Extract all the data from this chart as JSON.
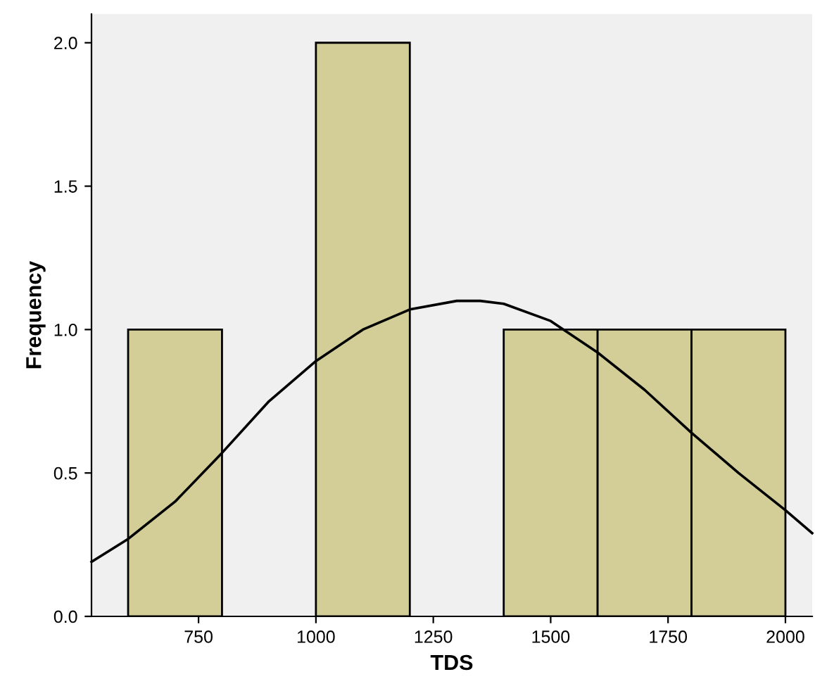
{
  "chart_data": {
    "type": "histogram",
    "xlabel": "TDS",
    "ylabel": "Frequency",
    "bins": [
      600,
      800,
      1000,
      1200,
      1400,
      1600,
      1800,
      2000
    ],
    "values": [
      1,
      0,
      2,
      0,
      1,
      1,
      1
    ],
    "color": "#d3ce97",
    "series": [
      {
        "type": "line",
        "color": "#000000",
        "x": [
          522,
          600,
          700,
          800,
          900,
          1000,
          1100,
          1200,
          1300,
          1350,
          1400,
          1500,
          1600,
          1700,
          1800,
          1900,
          2000,
          2057
        ],
        "values": [
          0.19,
          0.27,
          0.4,
          0.57,
          0.75,
          0.89,
          1.0,
          1.07,
          1.1,
          1.1,
          1.09,
          1.03,
          0.92,
          0.79,
          0.64,
          0.5,
          0.37,
          0.29
        ]
      }
    ],
    "xlim": [
      522,
      2057
    ],
    "ylim": [
      0,
      2.1
    ],
    "xticks": [
      750,
      1000,
      1250,
      1500,
      1750,
      2000
    ],
    "yticks": [
      {
        "value": 0,
        "label": "0.0"
      },
      {
        "value": 0.5,
        "label": "0.5"
      },
      {
        "value": 1,
        "label": "1.0"
      },
      {
        "value": 1.5,
        "label": "1.5"
      },
      {
        "value": 2,
        "label": "2.0"
      }
    ],
    "grid": false,
    "legend": false,
    "marker": "none",
    "line_style": "solid"
  }
}
